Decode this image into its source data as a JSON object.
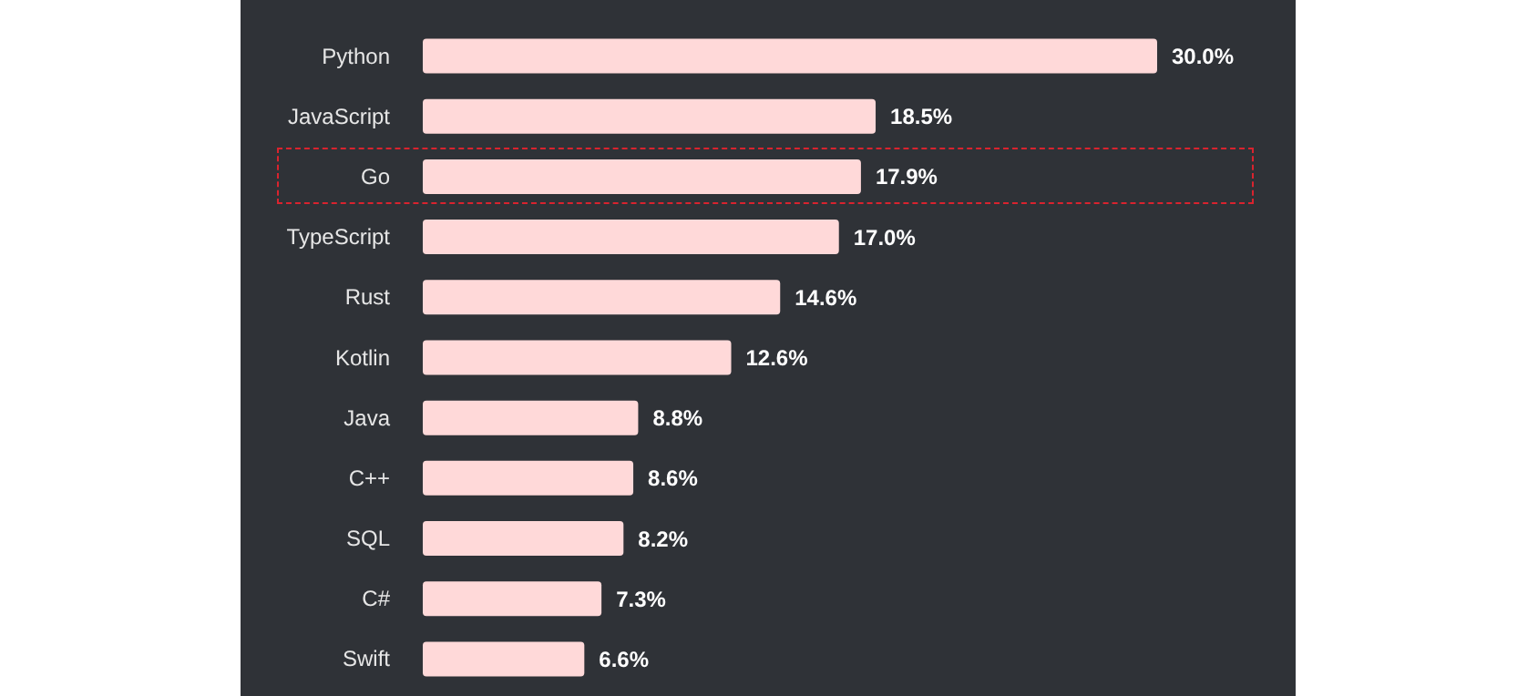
{
  "chart_data": {
    "type": "bar",
    "orientation": "horizontal",
    "categories": [
      "Python",
      "JavaScript",
      "Go",
      "TypeScript",
      "Rust",
      "Kotlin",
      "Java",
      "C++",
      "SQL",
      "C#",
      "Swift"
    ],
    "values": [
      30.0,
      18.5,
      17.9,
      17.0,
      14.6,
      12.6,
      8.8,
      8.6,
      8.2,
      7.3,
      6.6
    ],
    "value_labels": [
      "30.0%",
      "18.5%",
      "17.9%",
      "17.0%",
      "14.6%",
      "12.6%",
      "8.8%",
      "8.6%",
      "8.2%",
      "7.3%",
      "6.6%"
    ],
    "color": "#ffd9d9",
    "grid": false,
    "legend": false
  }
}
